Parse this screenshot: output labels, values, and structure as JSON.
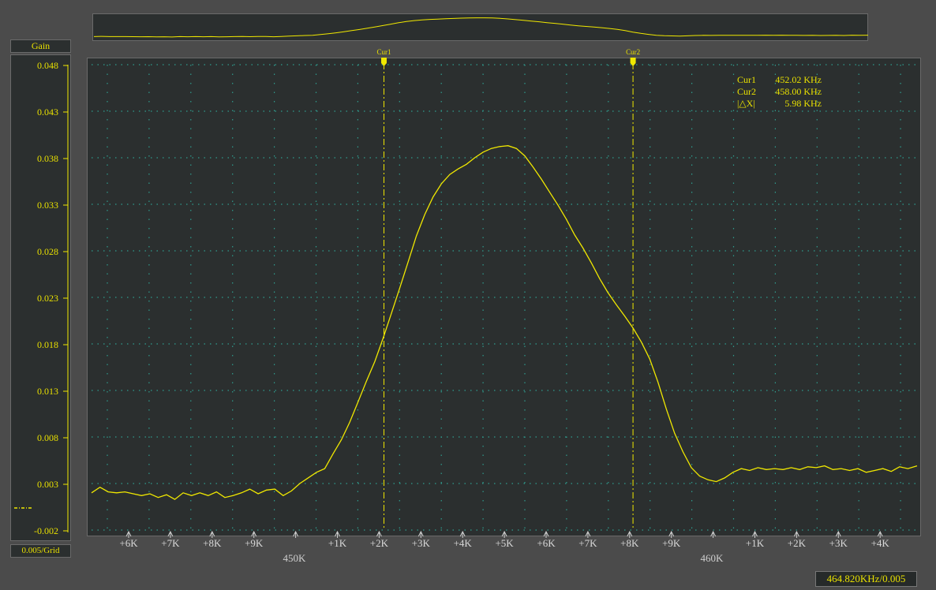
{
  "colors": {
    "trace": "#f0e800",
    "grid": "#2f9c8e",
    "text": "#e8e000",
    "panel": "#2b2f2f",
    "background": "#4b4b4b"
  },
  "yaxis": {
    "title": "Gain",
    "scale_label": "0.005/Grid",
    "ticks": [
      "0.048",
      "0.043",
      "0.038",
      "0.033",
      "0.028",
      "0.023",
      "0.018",
      "0.013",
      "0.008",
      "0.003",
      "-0.002"
    ]
  },
  "xaxis": {
    "ticks": [
      "+6K",
      "+7K",
      "+8K",
      "+9K",
      "",
      "+1K",
      "+2K",
      "+3K",
      "+4K",
      "+5K",
      "+6K",
      "+7K",
      "+8K",
      "+9K",
      "",
      "+1K",
      "+2K",
      "+3K",
      "+4K"
    ],
    "major_labels": [
      "450K",
      "460K"
    ]
  },
  "cursors": [
    {
      "label": "Cur1",
      "value": 452.02
    },
    {
      "label": "Cur2",
      "value": 458.0
    }
  ],
  "readout": [
    {
      "name": "Cur1",
      "value": "452.02 KHz"
    },
    {
      "name": "Cur2",
      "value": "458.00 KHz"
    },
    {
      "name": "|△X|",
      "value": "5.98 KHz"
    }
  ],
  "status": "464.820KHz/0.005",
  "chart_data": {
    "type": "line",
    "xlim": [
      445.0,
      464.82
    ],
    "ylim": [
      -0.002,
      0.048
    ],
    "grid": true,
    "x_units": "KHz",
    "series": [
      {
        "x": [
          445.0,
          445.2,
          445.4,
          445.6,
          445.8,
          446.0,
          446.2,
          446.4,
          446.6,
          446.8,
          447.0,
          447.2,
          447.4,
          447.6,
          447.8,
          448.0,
          448.2,
          448.4,
          448.6,
          448.8,
          449.0,
          449.2,
          449.4,
          449.6,
          449.8,
          450.0,
          450.2,
          450.4,
          450.6,
          450.8,
          451.0,
          451.2,
          451.4,
          451.6,
          451.8,
          452.0,
          452.2,
          452.4,
          452.6,
          452.8,
          453.0,
          453.2,
          453.4,
          453.6,
          453.8,
          454.0,
          454.2,
          454.4,
          454.6,
          454.8,
          455.0,
          455.2,
          455.4,
          455.6,
          455.8,
          456.0,
          456.2,
          456.4,
          456.6,
          456.8,
          457.0,
          457.2,
          457.4,
          457.6,
          457.8,
          458.0,
          458.2,
          458.4,
          458.6,
          458.8,
          459.0,
          459.2,
          459.4,
          459.6,
          459.8,
          460.0,
          460.2,
          460.4,
          460.6,
          460.8,
          461.0,
          461.2,
          461.4,
          461.6,
          461.8,
          462.0,
          462.2,
          462.4,
          462.6,
          462.8,
          463.0,
          463.2,
          463.4,
          463.6,
          463.8,
          464.0,
          464.2,
          464.4,
          464.6,
          464.82
        ],
        "values": [
          0.002,
          0.0026,
          0.0021,
          0.002,
          0.0021,
          0.0019,
          0.0017,
          0.0019,
          0.0015,
          0.0018,
          0.0013,
          0.002,
          0.0017,
          0.002,
          0.0017,
          0.0021,
          0.0015,
          0.0017,
          0.002,
          0.0024,
          0.0019,
          0.0023,
          0.0024,
          0.0017,
          0.0022,
          0.003,
          0.0036,
          0.0042,
          0.0046,
          0.0062,
          0.0077,
          0.0096,
          0.0118,
          0.014,
          0.0161,
          0.0186,
          0.0213,
          0.024,
          0.0268,
          0.0296,
          0.0319,
          0.0338,
          0.0352,
          0.0362,
          0.0368,
          0.0373,
          0.038,
          0.0386,
          0.039,
          0.0392,
          0.0393,
          0.039,
          0.0382,
          0.037,
          0.0357,
          0.0343,
          0.0329,
          0.0314,
          0.0297,
          0.0283,
          0.0267,
          0.025,
          0.0235,
          0.0222,
          0.021,
          0.0197,
          0.0182,
          0.0164,
          0.0139,
          0.011,
          0.0084,
          0.0064,
          0.0047,
          0.0038,
          0.0034,
          0.0032,
          0.0036,
          0.0042,
          0.0046,
          0.0044,
          0.0047,
          0.0045,
          0.0046,
          0.0045,
          0.0047,
          0.0045,
          0.0048,
          0.0047,
          0.0049,
          0.0045,
          0.0046,
          0.0044,
          0.0046,
          0.0042,
          0.0044,
          0.0046,
          0.0043,
          0.0048,
          0.0046,
          0.0049
        ]
      }
    ]
  }
}
